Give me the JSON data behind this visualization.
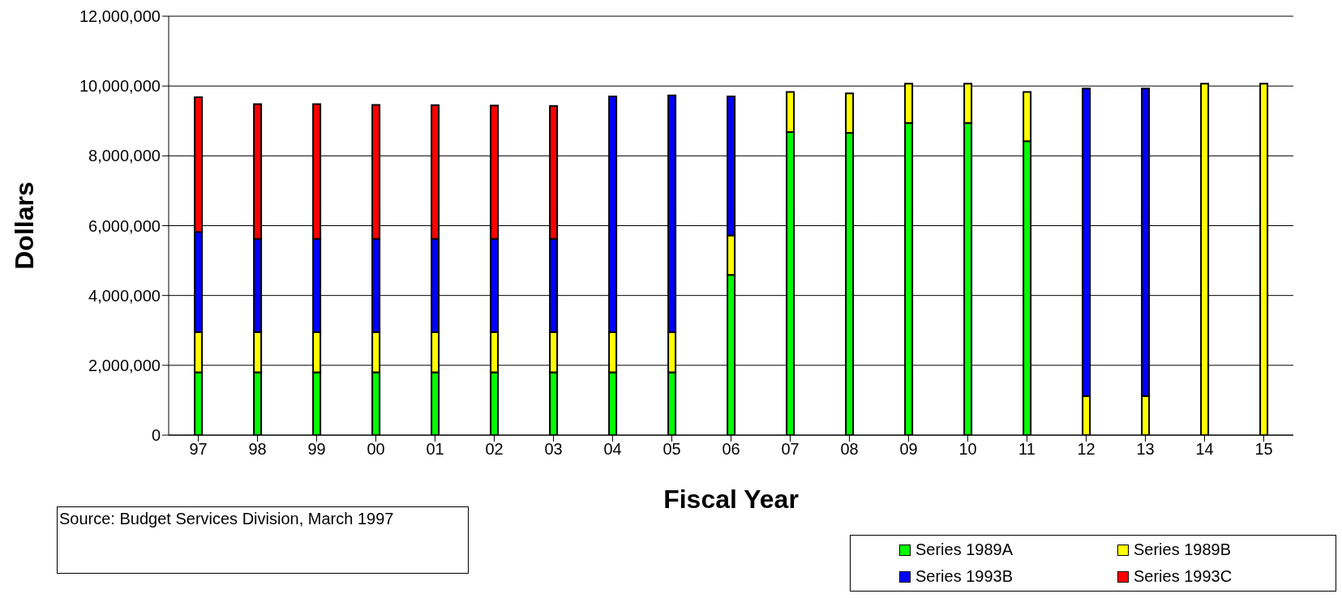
{
  "chart_data": {
    "type": "bar",
    "stacked": true,
    "xlabel": "Fiscal Year",
    "ylabel": "Dollars",
    "categories": [
      "97",
      "98",
      "99",
      "00",
      "01",
      "02",
      "03",
      "04",
      "05",
      "06",
      "07",
      "08",
      "09",
      "10",
      "11",
      "12",
      "13",
      "14",
      "15"
    ],
    "series": [
      {
        "name": "Series 1989A",
        "color": "#00ff00",
        "values": [
          1800000,
          1800000,
          1800000,
          1800000,
          1800000,
          1800000,
          1800000,
          1800000,
          1800000,
          4590000,
          8680000,
          8660000,
          8940000,
          8940000,
          8420000,
          null,
          null,
          null,
          null
        ]
      },
      {
        "name": "Series 1989B",
        "color": "#ffff00",
        "values": [
          1150000,
          1150000,
          1150000,
          1150000,
          1150000,
          1150000,
          1150000,
          1150000,
          1150000,
          1130000,
          1150000,
          1130000,
          1130000,
          1130000,
          1410000,
          1120000,
          1120000,
          10070000,
          10070000
        ]
      },
      {
        "name": "Series 1993B",
        "color": "#0000ff",
        "values": [
          2870000,
          2670000,
          2670000,
          2670000,
          2670000,
          2670000,
          2670000,
          6750000,
          6780000,
          3980000,
          null,
          null,
          null,
          null,
          null,
          8810000,
          8810000,
          null,
          null
        ]
      },
      {
        "name": "Series 1993C",
        "color": "#ff0000",
        "values": [
          3860000,
          3860000,
          3860000,
          3840000,
          3830000,
          3820000,
          3810000,
          null,
          null,
          null,
          null,
          null,
          null,
          null,
          null,
          null,
          null,
          null,
          null
        ]
      }
    ],
    "ylim": [
      0,
      12000000
    ],
    "yticks": [
      0,
      {
        "value": 2000000,
        "label": "2,000,000"
      },
      {
        "value": 4000000,
        "label": "4,000,000"
      },
      {
        "value": 6000000,
        "label": "6,000,000"
      },
      {
        "value": 8000000,
        "label": "8,000,000"
      },
      {
        "value": 10000000,
        "label": "10,000,000"
      },
      {
        "value": 12000000,
        "label": "12,000,000"
      }
    ],
    "grid": "y",
    "legend": "bottom right",
    "annotations": [
      "Source:  Budget Services Division, March 1997"
    ]
  }
}
